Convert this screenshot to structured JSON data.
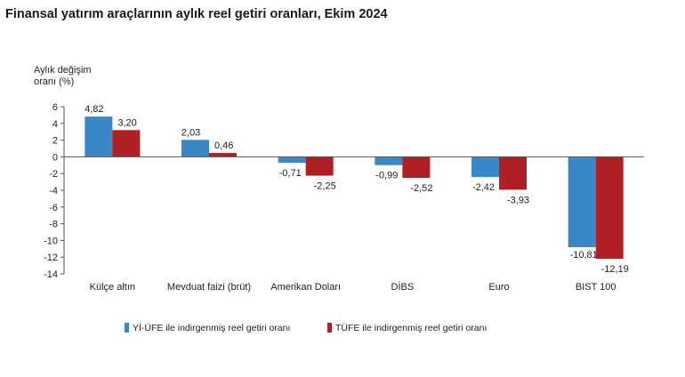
{
  "title": "Finansal yatırım araçlarının aylık reel getiri oranları, Ekim 2024",
  "chart_data": {
    "type": "bar",
    "title": "Finansal yatırım araçlarının aylık reel getiri oranları, Ekim 2024",
    "ylabel_lines": [
      "Aylık değişim",
      "oranı (%)"
    ],
    "xlabel": "",
    "ylim": [
      -14,
      6
    ],
    "yticks": [
      6,
      4,
      2,
      0,
      -2,
      -4,
      -6,
      -8,
      -10,
      -12,
      -14
    ],
    "categories": [
      "Külçe altın",
      "Mevduat faizi (brüt)",
      "Amerikan Doları",
      "DİBS",
      "Euro",
      "BIST 100"
    ],
    "series": [
      {
        "name": "Yİ-ÜFE ile indirgenmiş reel getiri oranı",
        "color": "#3a87c8",
        "values": [
          4.82,
          2.03,
          -0.71,
          -0.99,
          -2.42,
          -10.81
        ],
        "labels": [
          "4,82",
          "2,03",
          "-0,71",
          "-0,99",
          "-2,42",
          "-10,81"
        ]
      },
      {
        "name": "TÜFE ile indirgenmiş reel getiri oranı",
        "color": "#b01f24",
        "values": [
          3.2,
          0.46,
          -2.25,
          -2.52,
          -3.93,
          -12.19
        ],
        "labels": [
          "3,20",
          "0,46",
          "-2,25",
          "-2,52",
          "-3,93",
          "-12,19"
        ]
      }
    ],
    "legend_position": "bottom-center",
    "grid": false
  }
}
